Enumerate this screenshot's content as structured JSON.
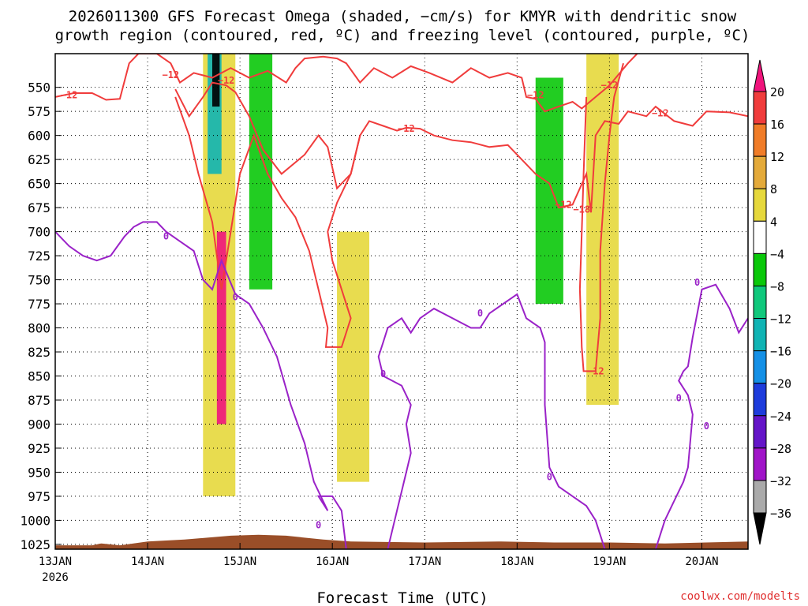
{
  "chart_data": {
    "type": "heatmap",
    "title_lines": [
      "2026011300 GFS Forecast Omega (shaded, −cm/s) for KMYR with dendritic snow",
      "growth region (contoured, red, ºC) and freezing level (contoured, purple, ºC)"
    ],
    "xlabel": "Forecast Time (UTC)",
    "credit": "coolwx.com/modelts",
    "x_ticks": [
      {
        "label": "13JAN",
        "sub": "2026",
        "day": 13
      },
      {
        "label": "14JAN",
        "day": 14
      },
      {
        "label": "15JAN",
        "day": 15
      },
      {
        "label": "16JAN",
        "day": 16
      },
      {
        "label": "17JAN",
        "day": 17
      },
      {
        "label": "18JAN",
        "day": 18
      },
      {
        "label": "19JAN",
        "day": 19
      },
      {
        "label": "20JAN",
        "day": 20
      }
    ],
    "xlim": [
      13,
      20.5
    ],
    "ylim": [
      1030,
      515
    ],
    "y_ticks": [
      550,
      575,
      600,
      625,
      650,
      675,
      700,
      725,
      750,
      775,
      800,
      825,
      850,
      875,
      900,
      925,
      950,
      975,
      1000,
      1025
    ],
    "colorbar": {
      "ticks": [
        "20",
        "16",
        "12",
        "8",
        "4",
        "−4",
        "−8",
        "−12",
        "−16",
        "−20",
        "−24",
        "−28",
        "−32",
        "−36"
      ],
      "colors": [
        "#f0147c",
        "#f03c3c",
        "#f07c28",
        "#e4aa3a",
        "#e6d83c",
        "#ffffff",
        "#0ac80a",
        "#10c87c",
        "#10b4b4",
        "#1490e6",
        "#1e3cdc",
        "#6414c8",
        "#a014c8",
        "#aaaaaa",
        "#000000"
      ]
    },
    "contour_labels_red": [
      "−12",
      "−12",
      "−12",
      "−12",
      "−12",
      "−12",
      "−12",
      "−12",
      "−18",
      "−12"
    ],
    "contour_labels_purple": [
      "0",
      "0",
      "0",
      "0",
      "0",
      "0",
      "0",
      "0",
      "0"
    ],
    "dgz_contour": [
      {
        "name": "-12 upper",
        "points": [
          [
            13.0,
            560
          ],
          [
            13.2,
            556
          ],
          [
            13.4,
            556
          ],
          [
            13.55,
            563
          ],
          [
            13.7,
            562
          ],
          [
            13.8,
            525
          ],
          [
            13.9,
            515
          ],
          [
            14.1,
            515
          ],
          [
            14.25,
            525
          ],
          [
            14.35,
            545
          ],
          [
            14.5,
            535
          ],
          [
            14.7,
            540
          ],
          [
            14.9,
            530
          ],
          [
            15.1,
            540
          ],
          [
            15.3,
            533
          ],
          [
            15.5,
            545
          ],
          [
            15.6,
            530
          ],
          [
            15.7,
            520
          ],
          [
            15.9,
            518
          ],
          [
            16.05,
            520
          ],
          [
            16.15,
            525
          ],
          [
            16.3,
            545
          ],
          [
            16.45,
            530
          ],
          [
            16.65,
            540
          ],
          [
            16.85,
            528
          ],
          [
            17.05,
            535
          ],
          [
            17.3,
            545
          ],
          [
            17.5,
            530
          ],
          [
            17.7,
            540
          ],
          [
            17.9,
            535
          ],
          [
            18.05,
            540
          ],
          [
            18.1,
            560
          ],
          [
            18.2,
            562
          ],
          [
            18.3,
            575
          ],
          [
            18.45,
            570
          ],
          [
            18.6,
            565
          ],
          [
            18.7,
            572
          ],
          [
            18.85,
            560
          ],
          [
            19.0,
            548
          ],
          [
            19.2,
            525
          ],
          [
            19.3,
            515
          ]
        ]
      },
      {
        "name": "-12 mid",
        "points": [
          [
            14.3,
            552
          ],
          [
            14.45,
            580
          ],
          [
            14.6,
            560
          ],
          [
            14.7,
            545
          ],
          [
            14.85,
            548
          ],
          [
            14.95,
            555
          ],
          [
            15.1,
            580
          ],
          [
            15.25,
            615
          ],
          [
            15.45,
            640
          ],
          [
            15.7,
            620
          ],
          [
            15.85,
            600
          ],
          [
            15.95,
            612
          ],
          [
            16.05,
            655
          ],
          [
            16.2,
            640
          ],
          [
            16.3,
            600
          ],
          [
            16.4,
            585
          ],
          [
            16.55,
            590
          ],
          [
            16.7,
            595
          ],
          [
            16.8,
            592
          ],
          [
            16.95,
            593
          ],
          [
            17.1,
            600
          ],
          [
            17.3,
            605
          ],
          [
            17.5,
            607
          ],
          [
            17.7,
            612
          ],
          [
            17.9,
            610
          ],
          [
            18.1,
            630
          ],
          [
            18.2,
            640
          ],
          [
            18.35,
            650
          ],
          [
            18.45,
            675
          ],
          [
            18.6,
            672
          ],
          [
            18.75,
            640
          ],
          [
            18.8,
            680
          ],
          [
            18.85,
            600
          ],
          [
            18.95,
            585
          ],
          [
            19.1,
            588
          ],
          [
            19.2,
            575
          ],
          [
            19.4,
            580
          ],
          [
            19.5,
            570
          ],
          [
            19.7,
            585
          ],
          [
            19.9,
            590
          ],
          [
            20.05,
            575
          ],
          [
            20.3,
            576
          ],
          [
            20.5,
            580
          ]
        ]
      },
      {
        "name": "-12 lower",
        "points": [
          [
            14.3,
            560
          ],
          [
            14.45,
            600
          ],
          [
            14.55,
            640
          ],
          [
            14.7,
            690
          ],
          [
            14.8,
            760
          ],
          [
            14.9,
            700
          ],
          [
            15.0,
            640
          ],
          [
            15.15,
            600
          ],
          [
            15.3,
            640
          ],
          [
            15.45,
            665
          ],
          [
            15.6,
            685
          ],
          [
            15.75,
            720
          ],
          [
            15.85,
            760
          ],
          [
            15.95,
            800
          ],
          [
            15.93,
            820
          ],
          [
            16.1,
            820
          ],
          [
            16.2,
            790
          ],
          [
            16.0,
            730
          ],
          [
            15.95,
            700
          ],
          [
            16.05,
            670
          ],
          [
            16.2,
            640
          ],
          [
            16.3,
            600
          ]
        ]
      },
      {
        "name": "-12 east",
        "points": [
          [
            18.75,
            560
          ],
          [
            18.72,
            640
          ],
          [
            18.7,
            700
          ],
          [
            18.68,
            760
          ],
          [
            18.7,
            820
          ],
          [
            18.72,
            845
          ],
          [
            18.85,
            845
          ],
          [
            18.9,
            790
          ],
          [
            18.9,
            720
          ],
          [
            18.95,
            650
          ],
          [
            19.0,
            600
          ],
          [
            19.05,
            560
          ],
          [
            19.15,
            525
          ]
        ]
      }
    ],
    "freezing_level_contour": [
      {
        "name": "0 main",
        "points": [
          [
            13.0,
            700
          ],
          [
            13.15,
            715
          ],
          [
            13.3,
            725
          ],
          [
            13.45,
            730
          ],
          [
            13.6,
            725
          ],
          [
            13.75,
            705
          ],
          [
            13.85,
            695
          ],
          [
            13.95,
            690
          ],
          [
            14.1,
            690
          ],
          [
            14.2,
            700
          ],
          [
            14.35,
            710
          ],
          [
            14.5,
            720
          ],
          [
            14.6,
            750
          ],
          [
            14.7,
            760
          ],
          [
            14.8,
            730
          ],
          [
            14.95,
            765
          ],
          [
            15.1,
            775
          ],
          [
            15.25,
            800
          ],
          [
            15.4,
            830
          ],
          [
            15.55,
            880
          ],
          [
            15.7,
            920
          ],
          [
            15.8,
            960
          ],
          [
            15.95,
            990
          ],
          [
            15.85,
            975
          ],
          [
            16.0,
            975
          ],
          [
            16.1,
            990
          ],
          [
            16.15,
            1030
          ]
        ]
      },
      {
        "name": "0 mid",
        "points": [
          [
            16.6,
            1030
          ],
          [
            16.7,
            990
          ],
          [
            16.8,
            950
          ],
          [
            16.85,
            930
          ],
          [
            16.8,
            900
          ],
          [
            16.85,
            880
          ],
          [
            16.75,
            860
          ],
          [
            16.55,
            850
          ],
          [
            16.5,
            830
          ],
          [
            16.55,
            815
          ],
          [
            16.6,
            800
          ],
          [
            16.75,
            790
          ],
          [
            16.85,
            805
          ],
          [
            16.95,
            790
          ],
          [
            17.1,
            780
          ],
          [
            17.3,
            790
          ],
          [
            17.5,
            800
          ],
          [
            17.6,
            800
          ],
          [
            17.7,
            785
          ],
          [
            17.85,
            775
          ],
          [
            18.0,
            765
          ],
          [
            18.1,
            790
          ],
          [
            18.25,
            800
          ],
          [
            18.3,
            815
          ],
          [
            18.3,
            880
          ],
          [
            18.35,
            945
          ],
          [
            18.45,
            965
          ],
          [
            18.6,
            975
          ],
          [
            18.75,
            985
          ],
          [
            18.85,
            1000
          ],
          [
            18.95,
            1030
          ]
        ]
      },
      {
        "name": "0 east",
        "points": [
          [
            19.5,
            1030
          ],
          [
            19.6,
            1000
          ],
          [
            19.7,
            980
          ],
          [
            19.8,
            960
          ],
          [
            19.85,
            945
          ],
          [
            19.9,
            890
          ],
          [
            19.85,
            870
          ],
          [
            19.75,
            855
          ],
          [
            19.8,
            845
          ],
          [
            19.85,
            840
          ],
          [
            19.9,
            810
          ],
          [
            20.0,
            760
          ],
          [
            20.15,
            755
          ],
          [
            20.3,
            780
          ],
          [
            20.4,
            805
          ],
          [
            20.5,
            790
          ]
        ]
      }
    ],
    "omega_shading": [
      {
        "day_start": 14.6,
        "day_end": 14.95,
        "p_top": 515,
        "p_bottom": 975,
        "value": "+4"
      },
      {
        "day_start": 14.75,
        "day_end": 14.85,
        "p_top": 700,
        "p_bottom": 900,
        "value": "+20"
      },
      {
        "day_start": 14.65,
        "day_end": 14.8,
        "p_top": 515,
        "p_bottom": 640,
        "value": "−16"
      },
      {
        "day_start": 14.7,
        "day_end": 14.78,
        "p_top": 515,
        "p_bottom": 570,
        "value": "−36"
      },
      {
        "day_start": 15.1,
        "day_end": 15.35,
        "p_top": 515,
        "p_bottom": 760,
        "value": "−8"
      },
      {
        "day_start": 16.05,
        "day_end": 16.4,
        "p_top": 700,
        "p_bottom": 960,
        "value": "+4"
      },
      {
        "day_start": 18.2,
        "day_end": 18.5,
        "p_top": 540,
        "p_bottom": 775,
        "value": "−8"
      },
      {
        "day_start": 18.75,
        "day_end": 19.1,
        "p_top": 515,
        "p_bottom": 880,
        "value": "+4"
      }
    ]
  }
}
